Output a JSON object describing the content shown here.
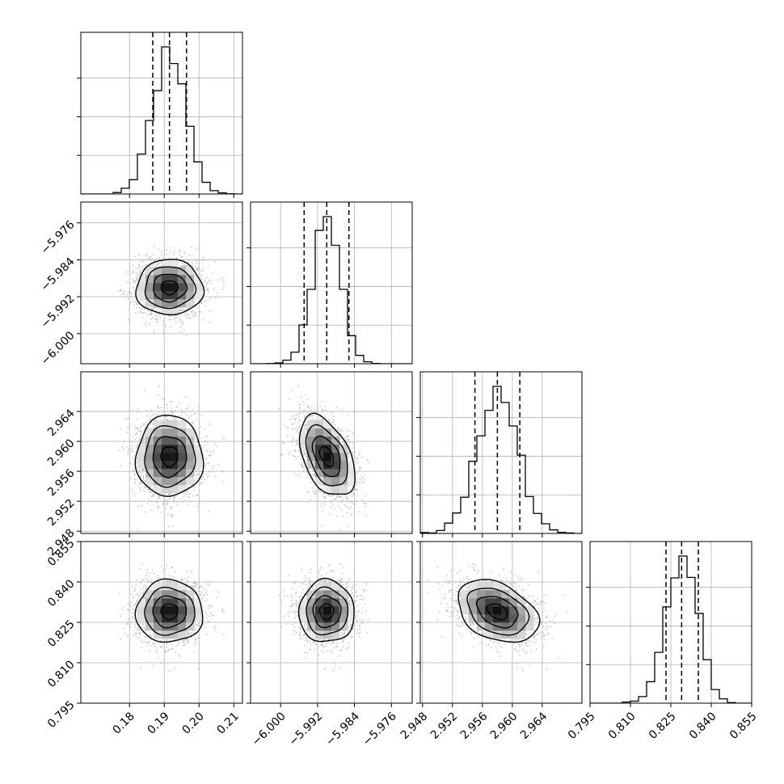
{
  "chart_data": {
    "type": "corner",
    "parameters": 4,
    "ranges": [
      [
        0.166,
        0.2125
      ],
      [
        -6.0065,
        -5.9715
      ],
      [
        2.9477,
        2.9693
      ],
      [
        0.795,
        0.855
      ]
    ],
    "ticks": [
      [
        0.18,
        0.19,
        0.2,
        0.21
      ],
      [
        -6.0,
        -5.992,
        -5.984,
        -5.976
      ],
      [
        2.948,
        2.952,
        2.956,
        2.96,
        2.964
      ],
      [
        0.795,
        0.81,
        0.825,
        0.84,
        0.855
      ]
    ],
    "tick_labels": [
      [
        "0.18",
        "0.19",
        "0.20",
        "0.21"
      ],
      [
        "−6.000",
        "−5.992",
        "−5.984",
        "−5.976"
      ],
      [
        "2.948",
        "2.952",
        "2.956",
        "2.960",
        "2.964"
      ],
      [
        "0.795",
        "0.810",
        "0.825",
        "0.840",
        "0.855"
      ]
    ],
    "means": [
      0.1915,
      -5.99,
      2.958,
      0.829
    ],
    "sigmas": [
      0.0048,
      0.003,
      0.0027,
      0.0058
    ],
    "quantiles": [
      [
        0.1867,
        0.1915,
        0.1964
      ],
      [
        -5.9949,
        -5.99,
        -5.9852
      ],
      [
        2.955,
        2.958,
        2.961
      ],
      [
        0.8232,
        0.829,
        0.8352
      ]
    ],
    "correlations": [
      [
        1.0,
        0.0,
        0.0,
        0.0
      ],
      [
        0.0,
        1.0,
        -0.45,
        0.0
      ],
      [
        0.0,
        -0.45,
        1.0,
        -0.35
      ],
      [
        0.0,
        0.0,
        -0.35,
        1.0
      ]
    ],
    "grid": true,
    "legend": "none"
  }
}
